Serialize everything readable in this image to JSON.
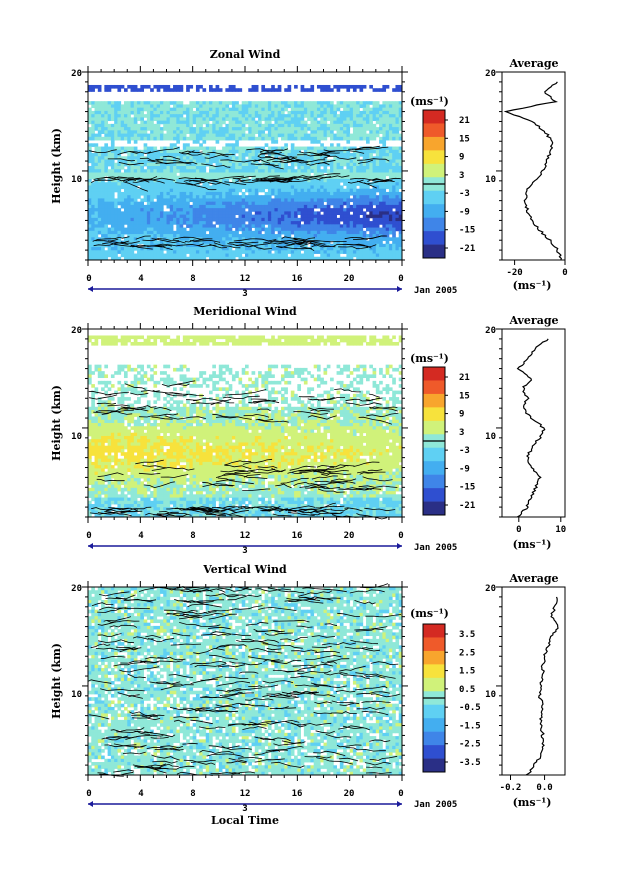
{
  "colors": {
    "scale": [
      "#2a2f86",
      "#2f4fd0",
      "#3f85e8",
      "#43aef0",
      "#5fd0f3",
      "#8fe8d8",
      "#d0f27a",
      "#f7e23c",
      "#f8a52d",
      "#ef5a2a",
      "#d42a22"
    ],
    "contour": "#000000",
    "axis": "#000000"
  },
  "date_label": "Jan 2005",
  "day_label": "3",
  "time_axis_label": "Local Time",
  "x_tick_labels": [
    "0",
    "4",
    "8",
    "12",
    "16",
    "20",
    "0"
  ],
  "height_label": "Height (km)",
  "height_ticks": [
    "20",
    "10"
  ],
  "unit_label": "(ms⁻¹)",
  "profile_title": "Average",
  "chart_data": [
    {
      "type": "heatmap",
      "title": "Zonal Wind",
      "xlabel": "",
      "ylabel": "Height (km)",
      "x_range": [
        0,
        24
      ],
      "y_range": [
        1,
        20
      ],
      "colorbar": {
        "unit": "(ms⁻¹)",
        "ticks": [
          "21",
          "15",
          "9",
          "3",
          "-3",
          "-9",
          "-15",
          "-21"
        ]
      },
      "profile": {
        "title": "Average",
        "xlabel": "(ms⁻¹)",
        "x_ticks": [
          "-20",
          "0"
        ],
        "xlim": [
          -25,
          0
        ],
        "height": [
          1,
          2,
          3,
          4,
          5,
          6,
          7,
          8,
          9,
          10,
          11,
          12,
          13,
          14,
          15,
          16,
          17,
          18,
          19
        ],
        "values": [
          -1,
          -3,
          -6,
          -10,
          -13,
          -15,
          -16,
          -15,
          -12,
          -9,
          -7,
          -6,
          -5,
          -8,
          -13,
          -24,
          -4,
          -8,
          -3
        ]
      }
    },
    {
      "type": "heatmap",
      "title": "Meridional Wind",
      "xlabel": "",
      "ylabel": "Height (km)",
      "x_range": [
        0,
        24
      ],
      "y_range": [
        1,
        20
      ],
      "colorbar": {
        "unit": "(ms⁻¹)",
        "ticks": [
          "21",
          "15",
          "9",
          "3",
          "-3",
          "-9",
          "-15",
          "-21"
        ]
      },
      "profile": {
        "title": "Average",
        "xlabel": "(ms⁻¹)",
        "x_ticks": [
          "0",
          "10"
        ],
        "xlim": [
          -4,
          11
        ],
        "height": [
          1,
          2,
          3,
          4,
          5,
          6,
          7,
          8,
          9,
          10,
          11,
          12,
          13,
          14,
          15,
          16,
          17,
          18,
          19
        ],
        "values": [
          0,
          2,
          3,
          4,
          5,
          3,
          2,
          3,
          5,
          6,
          3,
          1,
          2,
          1,
          3,
          0,
          2,
          4,
          7
        ]
      }
    },
    {
      "type": "heatmap",
      "title": "Vertical Wind",
      "xlabel": "Local Time",
      "ylabel": "Height (km)",
      "x_range": [
        0,
        24
      ],
      "y_range": [
        1,
        20
      ],
      "colorbar": {
        "unit": "(ms⁻¹)",
        "ticks": [
          "3.5",
          "2.5",
          "1.5",
          "0.5",
          "-0.5",
          "-1.5",
          "-2.5",
          "-3.5"
        ]
      },
      "profile": {
        "title": "Average",
        "xlabel": "(ms⁻¹)",
        "x_ticks": [
          "-0.2",
          "0.0"
        ],
        "xlim": [
          -0.25,
          0.12
        ],
        "height": [
          1,
          2,
          3,
          4,
          5,
          6,
          7,
          8,
          9,
          10,
          11,
          12,
          13,
          14,
          15,
          16,
          17,
          18,
          19
        ],
        "values": [
          -0.1,
          -0.06,
          -0.02,
          -0.01,
          -0.01,
          -0.02,
          -0.02,
          -0.01,
          -0.03,
          -0.02,
          -0.01,
          -0.01,
          0.0,
          0.02,
          0.04,
          0.08,
          0.04,
          0.06,
          0.07
        ]
      }
    }
  ]
}
